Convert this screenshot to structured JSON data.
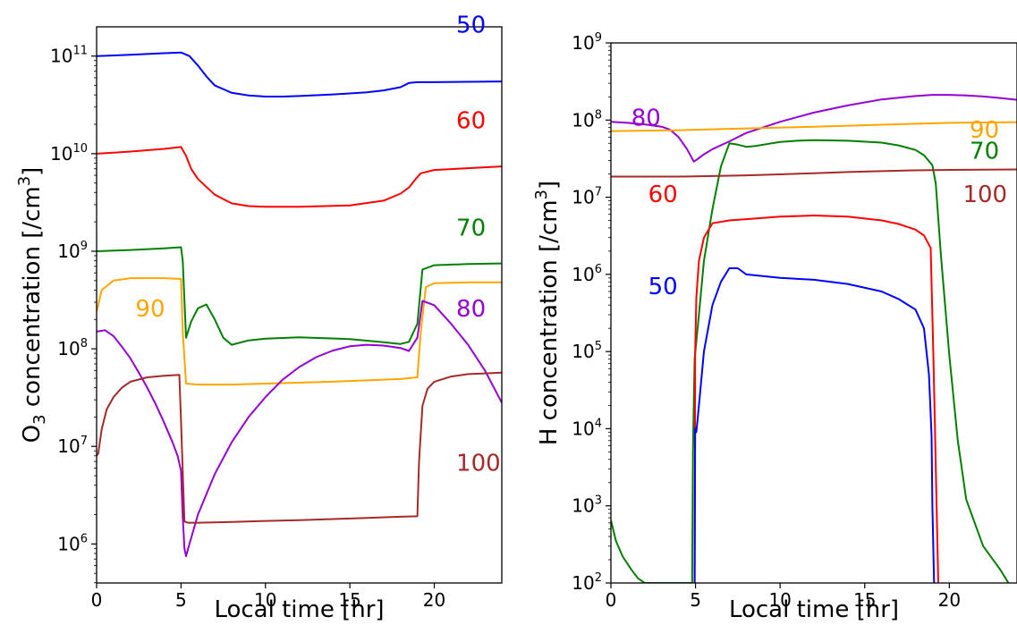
{
  "chart_data": [
    {
      "type": "line",
      "title": "",
      "xlabel": "Local time [hr]",
      "ylabel": {
        "prefix": "O",
        "sub": "3",
        "mid": " concentration [/cm",
        "sup": "3",
        "suffix": "]"
      },
      "xlim": [
        0,
        24
      ],
      "ylim_log10": [
        5.6,
        11.3
      ],
      "y_scale": "log",
      "x_ticks": [
        0,
        5,
        10,
        15,
        20
      ],
      "x_tick_labels": [
        "0",
        "5",
        "10",
        "15",
        "20"
      ],
      "y_tick_exponents": [
        6,
        7,
        8,
        9,
        10,
        11
      ],
      "y_tick_base": "10",
      "series": [
        {
          "name": "50",
          "color": "#0000ff",
          "label_at": [
            21.3,
            210000000000.0
          ],
          "x": [
            0,
            2,
            4,
            5,
            5.5,
            6,
            6.5,
            7,
            8,
            9,
            10,
            11,
            12,
            14,
            16,
            17,
            18,
            18.5,
            19,
            20,
            22,
            24
          ],
          "y": [
            100000000000.0,
            103000000000.0,
            107000000000.0,
            109000000000.0,
            100000000000.0,
            80000000000.0,
            62000000000.0,
            50000000000.0,
            42000000000.0,
            39500000000.0,
            38500000000.0,
            38500000000.0,
            39000000000.0,
            40500000000.0,
            42500000000.0,
            44500000000.0,
            48000000000.0,
            53000000000.0,
            54000000000.0,
            54000000000.0,
            54500000000.0,
            55000000000.0
          ]
        },
        {
          "name": "60",
          "color": "#ff0000",
          "label_at": [
            21.3,
            22000000000.0
          ],
          "x": [
            0,
            2,
            4,
            5,
            5.3,
            5.6,
            6,
            7,
            8,
            9,
            10,
            12,
            15,
            17,
            18,
            18.5,
            18.9,
            19.2,
            20,
            22,
            24
          ],
          "y": [
            10000000000.0,
            10500000000.0,
            11200000000.0,
            11700000000.0,
            9500000000.0,
            7000000000.0,
            5500000000.0,
            3800000000.0,
            3100000000.0,
            2900000000.0,
            2850000000.0,
            2850000000.0,
            2950000000.0,
            3300000000.0,
            3900000000.0,
            4500000000.0,
            5500000000.0,
            6300000000.0,
            6800000000.0,
            7100000000.0,
            7400000000.0
          ]
        },
        {
          "name": "70",
          "color": "#008000",
          "label_at": [
            21.3,
            1750000000.0
          ],
          "x": [
            0,
            2,
            4,
            5,
            5.1,
            5.3,
            5.6,
            6,
            6.5,
            7,
            7.5,
            8,
            9,
            10,
            12,
            15,
            17,
            18,
            18.5,
            19,
            19.3,
            20,
            22,
            24
          ],
          "y": [
            1000000000.0,
            1030000000.0,
            1070000000.0,
            1100000000.0,
            800000000.0,
            130000000.0,
            190000000.0,
            260000000.0,
            285000000.0,
            200000000.0,
            130000000.0,
            110000000.0,
            122000000.0,
            127000000.0,
            131000000.0,
            126000000.0,
            117000000.0,
            112000000.0,
            118000000.0,
            180000000.0,
            650000000.0,
            720000000.0,
            740000000.0,
            750000000.0
          ]
        },
        {
          "name": "90",
          "color": "#ffa500",
          "label_at": [
            2.3,
            260000000.0
          ],
          "x": [
            0,
            0.3,
            1,
            2,
            4,
            5,
            5.1,
            5.3,
            6,
            8,
            10,
            14,
            18,
            19,
            19.2,
            19.5,
            20,
            22,
            24
          ],
          "y": [
            240000000.0,
            400000000.0,
            500000000.0,
            530000000.0,
            530000000.0,
            520000000.0,
            150000000.0,
            44000000.0,
            43000000.0,
            43000000.0,
            44000000.0,
            46000000.0,
            49000000.0,
            51000000.0,
            150000000.0,
            430000000.0,
            470000000.0,
            480000000.0,
            480000000.0
          ]
        },
        {
          "name": "80",
          "color": "#9400d3",
          "label_at": [
            21.3,
            260000000.0
          ],
          "x": [
            0,
            0.5,
            1,
            1.5,
            2,
            2.5,
            3,
            3.5,
            4,
            4.5,
            4.8,
            5.0,
            5.1,
            5.2,
            5.3,
            5.5,
            6,
            7,
            8,
            9,
            10,
            11,
            12,
            13,
            14,
            15,
            16,
            17,
            18,
            18.5,
            19,
            19.3,
            20,
            21,
            22,
            23,
            24
          ],
          "y": [
            150000000.0,
            155000000.0,
            135000000.0,
            105000000.0,
            80000000.0,
            57000000.0,
            40000000.0,
            27000000.0,
            17500000.0,
            11000000.0,
            8000000.0,
            5600000.0,
            1900000.0,
            900000.0,
            750000.0,
            1000000.0,
            2000000.0,
            5200000.0,
            11000000.0,
            20000000.0,
            32000000.0,
            48000000.0,
            65000000.0,
            82000000.0,
            96000000.0,
            106000000.0,
            110000000.0,
            108000000.0,
            102000000.0,
            95000000.0,
            130000000.0,
            310000000.0,
            280000000.0,
            180000000.0,
            110000000.0,
            60000000.0,
            28000000.0
          ]
        },
        {
          "name": "100",
          "color": "#a52a2a",
          "label_at": [
            21.3,
            6800000.0
          ],
          "x": [
            0,
            0.1,
            0.3,
            0.6,
            1,
            1.5,
            2,
            3,
            4,
            4.9,
            5.0,
            5.2,
            5.4,
            6,
            8,
            10,
            12,
            14,
            16,
            18,
            19,
            19.1,
            19.3,
            19.6,
            20,
            21,
            22,
            23,
            24
          ],
          "y": [
            8000000.0,
            8500000.0,
            15000000.0,
            24000000.0,
            32000000.0,
            40000000.0,
            46000000.0,
            51000000.0,
            53000000.0,
            54000000.0,
            18000000.0,
            1700000.0,
            1650000.0,
            1650000.0,
            1680000.0,
            1720000.0,
            1750000.0,
            1800000.0,
            1850000.0,
            1900000.0,
            1920000.0,
            7000000.0,
            26000000.0,
            39000000.0,
            46000000.0,
            52000000.0,
            55000000.0,
            56000000.0,
            57000000.0
          ]
        }
      ]
    },
    {
      "type": "line",
      "title": "",
      "xlabel": "Local time [hr]",
      "ylabel": {
        "prefix": "H",
        "sub": "",
        "mid": " concentration [/cm",
        "sup": "3",
        "suffix": "]"
      },
      "xlim": [
        0,
        24
      ],
      "ylim_log10": [
        2,
        9
      ],
      "y_scale": "log",
      "x_ticks": [
        0,
        5,
        10,
        15,
        20
      ],
      "x_tick_labels": [
        "0",
        "5",
        "10",
        "15",
        "20"
      ],
      "y_tick_exponents": [
        2,
        3,
        4,
        5,
        6,
        7,
        8,
        9
      ],
      "y_tick_base": "10",
      "series": [
        {
          "name": "80",
          "color": "#9400d3",
          "label_at": [
            1.2,
            108000000.0
          ],
          "x": [
            0,
            1,
            2,
            3,
            3.5,
            4,
            4.5,
            4.9,
            5.1,
            5.5,
            6,
            7,
            8,
            10,
            12,
            14,
            16,
            18,
            19,
            20,
            21,
            22,
            23,
            24
          ],
          "y": [
            95000000.0,
            92000000.0,
            88000000.0,
            82000000.0,
            75000000.0,
            60000000.0,
            42000000.0,
            29000000.0,
            31000000.0,
            36000000.0,
            42000000.0,
            53000000.0,
            68000000.0,
            95000000.0,
            125000000.0,
            155000000.0,
            185000000.0,
            205000000.0,
            212000000.0,
            212000000.0,
            208000000.0,
            202000000.0,
            193000000.0,
            183000000.0
          ]
        },
        {
          "name": "90",
          "color": "#ffa500",
          "label_at": [
            21.2,
            75000000.0
          ],
          "x": [
            0,
            4,
            8,
            12,
            16,
            20,
            24
          ],
          "y": [
            72000000.0,
            74000000.0,
            78000000.0,
            82000000.0,
            87000000.0,
            92000000.0,
            94000000.0
          ]
        },
        {
          "name": "70",
          "color": "#008000",
          "label_at": [
            21.2,
            40000000.0
          ],
          "x": [
            0,
            0.3,
            0.7,
            1.2,
            1.6,
            2.0,
            4.8,
            4.85,
            4.95,
            5.2,
            5.5,
            6,
            6.5,
            7,
            7.5,
            8,
            8.5,
            9,
            10,
            11,
            12,
            14,
            16,
            17,
            18,
            18.5,
            19.0,
            19.2,
            19.5,
            20,
            20.5,
            21,
            22,
            23,
            23.5
          ],
          "y": [
            650,
            350,
            220,
            150,
            115,
            100,
            100,
            5000.0,
            80000.0,
            300000.0,
            1500000.0,
            7000000.0,
            25000000.0,
            50000000.0,
            48000000.0,
            45000000.0,
            46000000.0,
            48000000.0,
            52000000.0,
            54000000.0,
            55000000.0,
            54000000.0,
            51000000.0,
            47000000.0,
            41000000.0,
            35000000.0,
            26000000.0,
            15000000.0,
            1800000.0,
            90000.0,
            7000.0,
            1200,
            300,
            150,
            100
          ]
        },
        {
          "name": "100",
          "color": "#a52a2a",
          "label_at": [
            20.8,
            11000000.0
          ],
          "x": [
            0,
            4,
            6,
            8,
            10,
            12,
            14,
            16,
            18,
            20,
            22,
            24
          ],
          "y": [
            18500000.0,
            18500000.0,
            18800000.0,
            19200000.0,
            19800000.0,
            20500000.0,
            21200000.0,
            21800000.0,
            22300000.0,
            22600000.0,
            22800000.0,
            22900000.0
          ]
        },
        {
          "name": "60",
          "color": "#ff0000",
          "label_at": [
            2.2,
            11000000.0
          ],
          "x": [
            4.95,
            4.98,
            5.05,
            5.2,
            5.5,
            6,
            7,
            8,
            10,
            12,
            14,
            16,
            17,
            18,
            18.5,
            18.9,
            19.05,
            19.15,
            19.25,
            19.35
          ],
          "y": [
            100,
            100000.0,
            500000.0,
            1500000.0,
            3000000.0,
            4600000.0,
            5000000.0,
            5200000.0,
            5600000.0,
            5800000.0,
            5600000.0,
            5000000.0,
            4500000.0,
            3800000.0,
            3200000.0,
            2200000.0,
            100000.0,
            10000.0,
            1000,
            100
          ]
        },
        {
          "name": "50",
          "color": "#0000ff",
          "label_at": [
            2.2,
            700000.0
          ],
          "x": [
            4.95,
            4.98,
            5.05,
            5.2,
            5.5,
            6,
            6.5,
            7,
            7.5,
            8,
            10,
            12,
            14,
            16,
            17,
            18,
            18.5,
            18.8,
            18.95,
            19.0,
            19.05,
            19.1
          ],
          "y": [
            100,
            10000.0,
            9000.0,
            20000.0,
            100000.0,
            400000.0,
            800000.0,
            1200000.0,
            1200000.0,
            1000000.0,
            900000.0,
            850000.0,
            750000.0,
            600000.0,
            480000.0,
            350000.0,
            200000.0,
            50000.0,
            8000.0,
            1000,
            300,
            100
          ]
        }
      ]
    }
  ]
}
